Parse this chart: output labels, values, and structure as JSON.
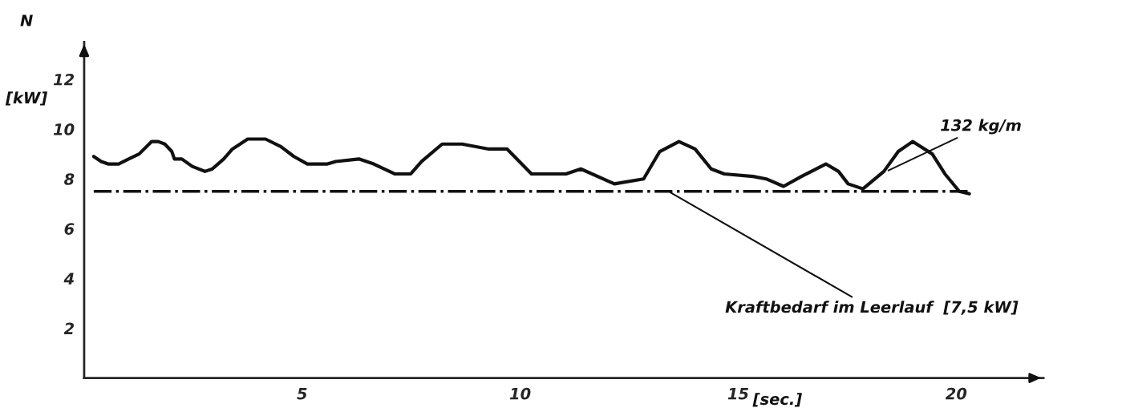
{
  "chart_data": {
    "type": "line",
    "xlabel": "[sec.]",
    "ylabel": "N",
    "x": [
      0.22,
      0.39,
      0.55,
      0.79,
      1.02,
      1.26,
      1.55,
      1.7,
      1.85,
      2.01,
      2.07,
      2.24,
      2.48,
      2.77,
      2.94,
      3.2,
      3.4,
      3.75,
      4.16,
      4.51,
      4.81,
      5.12,
      5.58,
      5.77,
      6.3,
      6.64,
      7.12,
      7.49,
      7.74,
      8.21,
      8.67,
      9.28,
      9.7,
      10.26,
      11.05,
      11.39,
      12.16,
      12.83,
      13.2,
      13.64,
      14.01,
      14.38,
      14.68,
      15.34,
      15.64,
      16.04,
      16.45,
      17.01,
      17.3,
      17.52,
      17.86,
      18.34,
      18.67,
      19.0,
      19.45,
      19.74,
      20.07,
      20.3
    ],
    "series": [
      {
        "color": "#111111",
        "values": [
          8.9,
          8.7,
          8.6,
          8.6,
          8.8,
          9.0,
          9.5,
          9.5,
          9.4,
          9.1,
          8.8,
          8.8,
          8.5,
          8.3,
          8.4,
          8.8,
          9.2,
          9.6,
          9.6,
          9.3,
          8.9,
          8.6,
          8.6,
          8.7,
          8.8,
          8.6,
          8.2,
          8.2,
          8.7,
          9.4,
          9.4,
          9.2,
          9.2,
          8.2,
          8.2,
          8.4,
          7.8,
          8.0,
          9.1,
          9.5,
          9.2,
          8.4,
          8.2,
          8.1,
          8.0,
          7.7,
          8.1,
          8.6,
          8.3,
          7.8,
          7.6,
          8.3,
          9.1,
          9.5,
          9.0,
          8.2,
          7.5,
          7.4
        ]
      }
    ],
    "xlim": [
      0,
      22
    ],
    "ylim": [
      0,
      13.5
    ],
    "xticks": [
      5,
      10,
      15,
      20
    ],
    "yticks": [
      2,
      4,
      6,
      8,
      10,
      12
    ],
    "ref_lines": [
      {
        "axis": "y",
        "value": 7.5,
        "label": "Kraftbedarf im Leerlauf  [7,5 kW]",
        "color": "#111111",
        "line_style": "dashdot"
      }
    ],
    "annotations": [
      {
        "text": "132 kg/m",
        "x": 18.4,
        "y": 8.3
      },
      "[kW]"
    ],
    "grid": false,
    "marker": "none",
    "line_style": "solid"
  }
}
